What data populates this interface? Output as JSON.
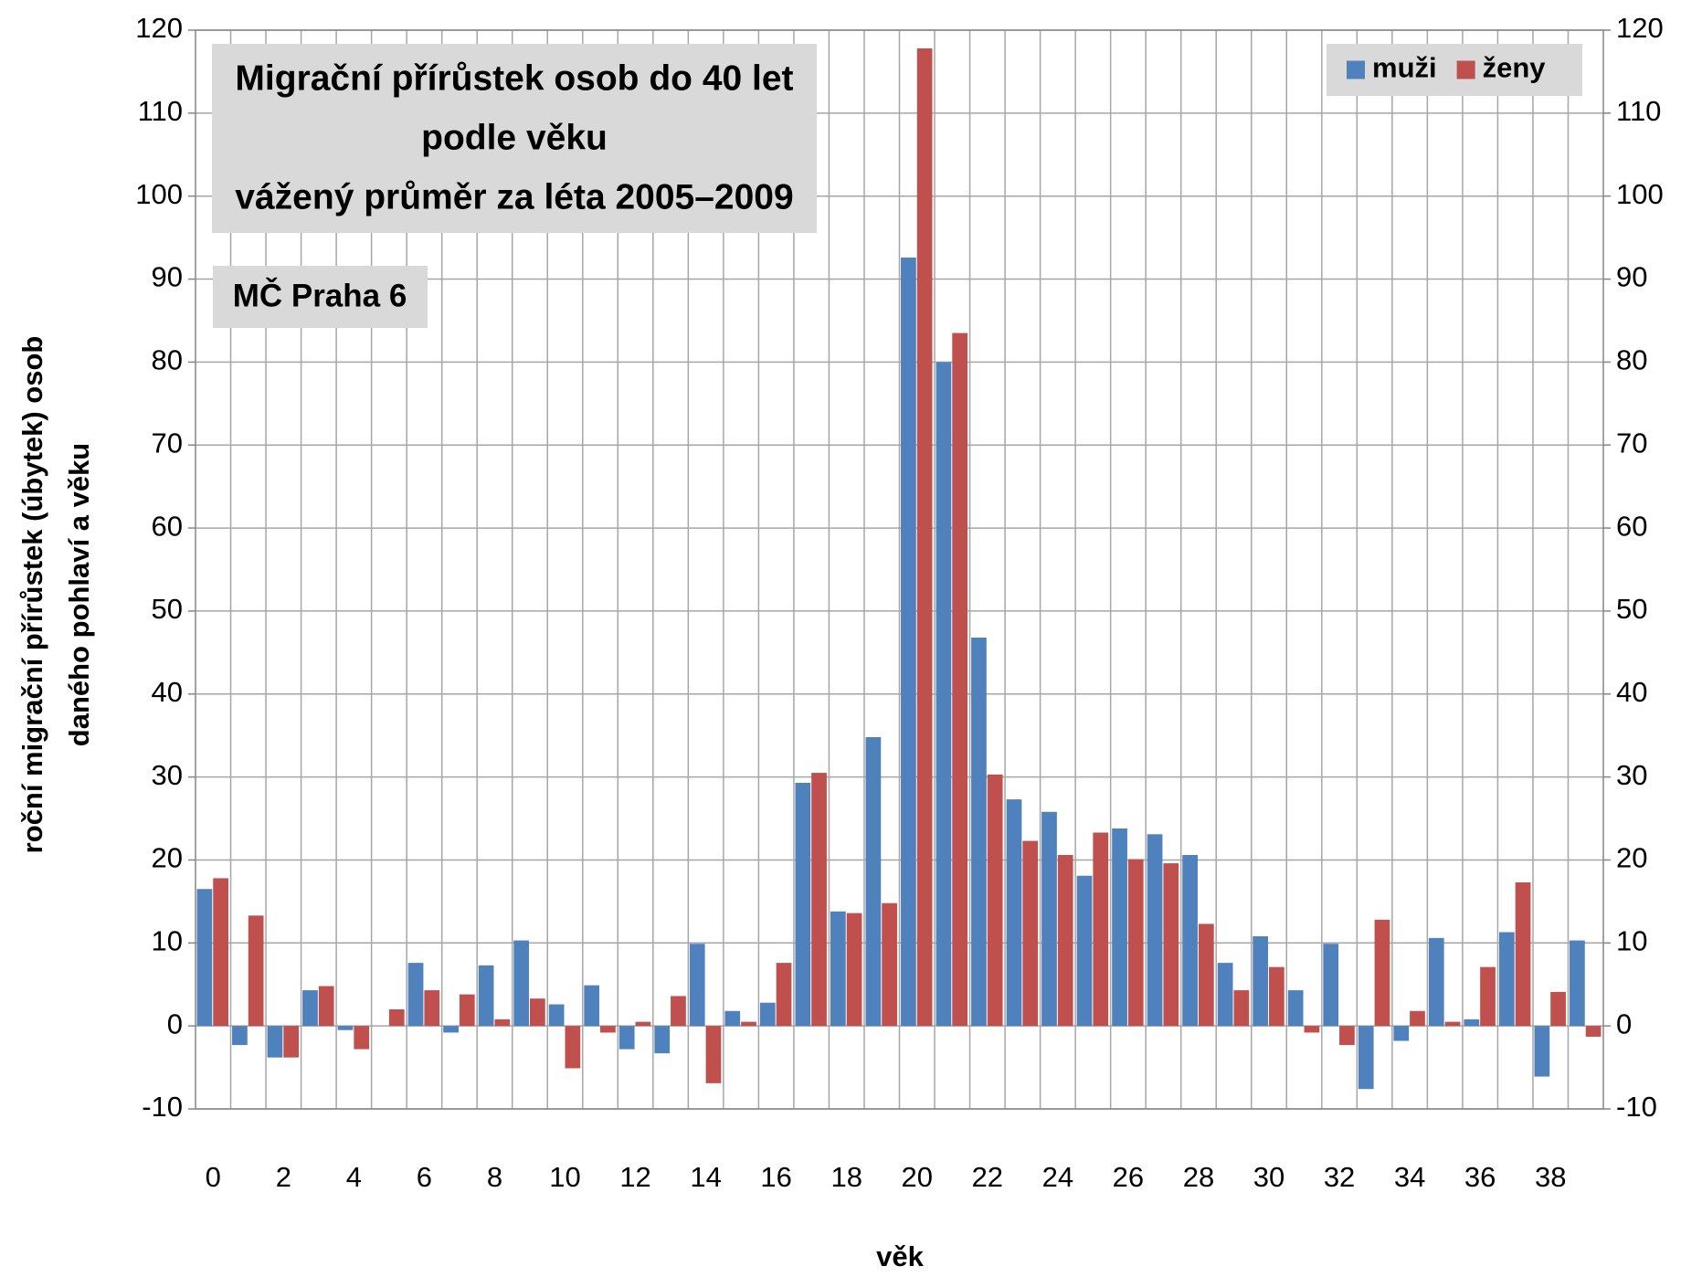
{
  "chart_data": {
    "type": "bar",
    "title": [
      "Migrační přírůstek osob do 40 let",
      "podle věku",
      "vážený průměr za léta 2005–2009"
    ],
    "subtitle": "MČ Praha 6",
    "x_label": "věk",
    "y_label": [
      "roční migrační přírůstek (úbytek) osob",
      "daného pohlaví a věku"
    ],
    "categories": [
      0,
      null,
      2,
      null,
      4,
      null,
      6,
      null,
      8,
      null,
      10,
      null,
      12,
      null,
      14,
      null,
      16,
      null,
      18,
      null,
      20,
      null,
      22,
      null,
      24,
      null,
      26,
      null,
      28,
      null,
      30,
      null,
      32,
      null,
      34,
      null,
      36,
      null,
      38,
      null
    ],
    "series": [
      {
        "name": "muži",
        "color": "#4f81bd",
        "values": [
          16.5,
          -2.3,
          -3.8,
          4.3,
          -0.5,
          0,
          7.6,
          -0.8,
          7.3,
          10.3,
          2.6,
          4.9,
          -2.8,
          -3.3,
          9.9,
          1.8,
          2.8,
          29.3,
          13.8,
          34.8,
          92.6,
          80.0,
          46.8,
          27.3,
          25.8,
          18.1,
          23.8,
          23.1,
          20.6,
          7.6,
          10.8,
          4.3,
          9.9,
          -7.6,
          -1.8,
          10.6,
          0.8,
          11.3,
          -6.1,
          10.3
        ]
      },
      {
        "name": "ženy",
        "color": "#c0504d",
        "values": [
          17.8,
          13.3,
          -3.8,
          4.8,
          -2.8,
          2.0,
          4.3,
          3.8,
          0.8,
          3.3,
          -5.1,
          -0.8,
          0.5,
          3.6,
          -6.9,
          0.5,
          7.6,
          30.5,
          13.6,
          14.8,
          117.8,
          83.5,
          30.3,
          22.3,
          20.6,
          23.3,
          20.1,
          19.6,
          12.3,
          4.3,
          7.1,
          -0.8,
          -2.3,
          12.8,
          1.8,
          0.5,
          7.1,
          17.3,
          4.1,
          -1.3
        ]
      }
    ],
    "ylim": [
      -10,
      120
    ],
    "yticks": [
      -10,
      0,
      10,
      20,
      30,
      40,
      50,
      60,
      70,
      80,
      90,
      100,
      110,
      120
    ],
    "y2lim": [
      -10,
      120
    ],
    "y2ticks": [
      -10,
      0,
      10,
      20,
      30,
      40,
      50,
      60,
      70,
      80,
      90,
      100,
      110,
      120
    ],
    "grid": true,
    "legend": "top-right"
  }
}
